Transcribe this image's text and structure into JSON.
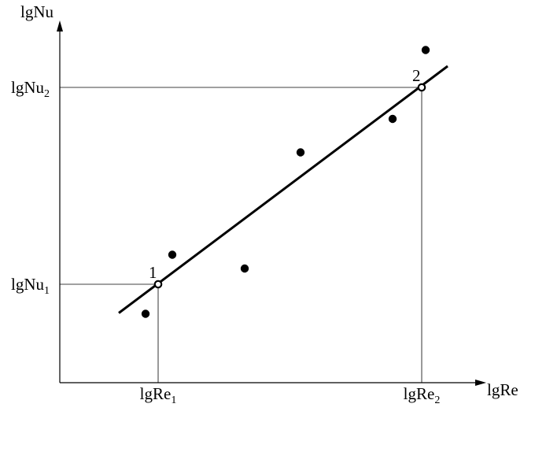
{
  "chart_data": {
    "type": "scatter",
    "xlabel": "lgRe",
    "ylabel": "lgNu",
    "x_ticks": [
      {
        "text": "lgRe",
        "sub": "1",
        "value": 2.5
      },
      {
        "text": "lgRe",
        "sub": "2",
        "value": 9.2
      }
    ],
    "y_ticks": [
      {
        "text": "lgNu",
        "sub": "1",
        "value": 2.5
      },
      {
        "text": "lgNu",
        "sub": "2",
        "value": 7.5
      }
    ],
    "xlim": [
      0,
      10.8
    ],
    "ylim": [
      0,
      9.1
    ],
    "grid": false,
    "series": [
      {
        "type": "scatter",
        "points": [
          {
            "x": 2.18,
            "y": 1.75
          },
          {
            "x": 2.86,
            "y": 3.25
          },
          {
            "x": 4.7,
            "y": 2.9
          },
          {
            "x": 6.12,
            "y": 5.85
          },
          {
            "x": 8.46,
            "y": 6.7
          },
          {
            "x": 9.3,
            "y": 8.45
          }
        ]
      },
      {
        "type": "line",
        "points": [
          {
            "x": 1.5,
            "y": 1.77
          },
          {
            "x": 9.86,
            "y": 8.04
          }
        ]
      }
    ],
    "annotations": [
      {
        "label": "1",
        "x": 2.5,
        "y": 2.5
      },
      {
        "label": "2",
        "x": 9.2,
        "y": 7.5
      }
    ]
  }
}
